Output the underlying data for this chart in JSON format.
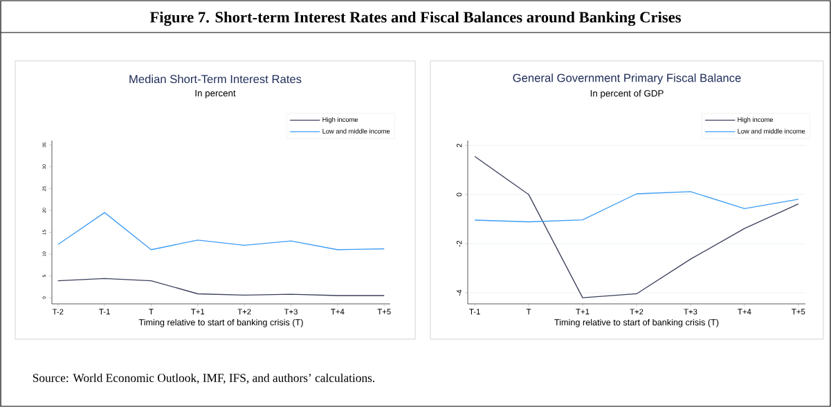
{
  "chart_data": [
    {
      "type": "line",
      "title": "Median Short-Term Interest Rates",
      "subtitle": "In percent",
      "xlabel": "Timing relative to start of banking crisis (T)",
      "annotations": [
        "Figure 7. Short-term Interest Rates and Fiscal Balances around Banking Crises"
      ],
      "categories": [
        "T-2",
        "T-1",
        "T",
        "T+1",
        "T+2",
        "T+3",
        "T+4",
        "T+5"
      ],
      "series": [
        {
          "name": "High income",
          "color": "#3b3f5c",
          "values": [
            3.9,
            4.4,
            3.9,
            0.9,
            0.6,
            0.8,
            0.5,
            0.5
          ]
        },
        {
          "name": "Low and middle income",
          "color": "#3d9df5",
          "values": [
            12.2,
            19.5,
            11.0,
            13.2,
            12.0,
            13.0,
            11.0,
            11.2
          ]
        }
      ],
      "ylim": [
        -1.4,
        36
      ],
      "yticks": [
        0,
        5,
        10,
        15,
        20,
        25,
        30,
        35
      ],
      "legend": "top right"
    },
    {
      "type": "line",
      "title": "General Government Primary Fiscal Balance",
      "subtitle": "In percent of GDP",
      "xlabel": "Timing relative to start of banking crisis (T)",
      "annotations": [
        "Source: World Economic Outlook, IMF, IFS, and authors’ calculations."
      ],
      "categories": [
        "T-1",
        "T",
        "T+1",
        "T+2",
        "T+3",
        "T+4",
        "T+5"
      ],
      "series": [
        {
          "name": "High income",
          "color": "#3b3f5c",
          "values": [
            1.55,
            0.0,
            -4.2,
            -4.04,
            -2.63,
            -1.38,
            -0.38
          ]
        },
        {
          "name": "Low and middle income",
          "color": "#3d9df5",
          "values": [
            -1.04,
            -1.11,
            -1.03,
            0.03,
            0.12,
            -0.57,
            -0.19
          ]
        }
      ],
      "ylim": [
        -4.45,
        2.2
      ],
      "yticks": [
        -4,
        -2,
        0,
        2
      ],
      "grid": "y",
      "legend": "top right"
    }
  ]
}
